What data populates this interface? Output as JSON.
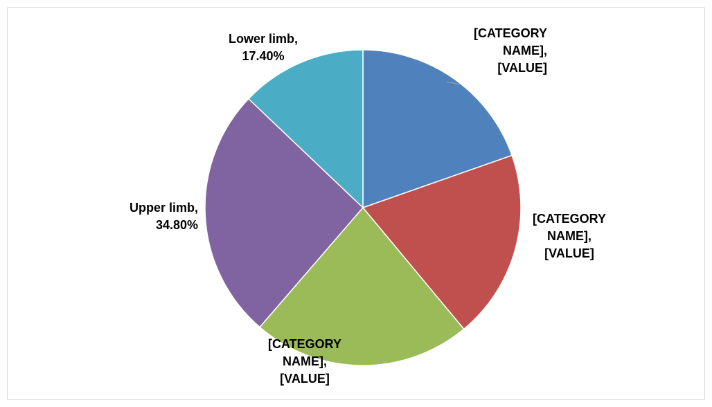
{
  "chart_data": {
    "type": "pie",
    "categories": [
      "[CATEGORY NAME]",
      "[CATEGORY NAME]",
      "[CATEGORY NAME]",
      "Upper limb",
      "Lower limb"
    ],
    "values": [
      26.5,
      26.1,
      30.2,
      34.8,
      17.4
    ],
    "value_labels": [
      "[VALUE]",
      "[VALUE]",
      "[VALUE]",
      "34.80%",
      "17.40%"
    ],
    "label_separator": ",",
    "colors": [
      "#4f81bd",
      "#c0504d",
      "#9bbb59",
      "#8064a2",
      "#4bacc6"
    ]
  }
}
